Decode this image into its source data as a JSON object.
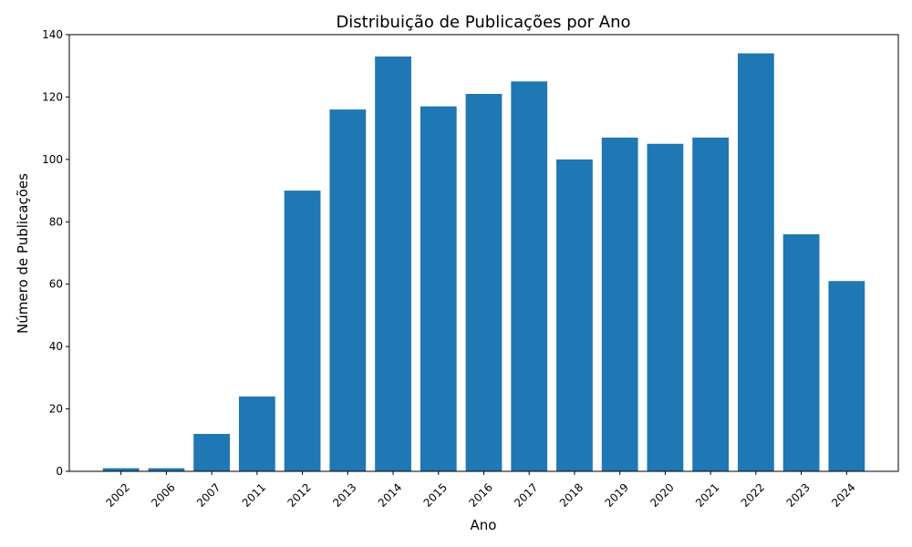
{
  "chart_data": {
    "type": "bar",
    "title": "Distribuição de Publicações por Ano",
    "xlabel": "Ano",
    "ylabel": "Número de Publicações",
    "categories": [
      "2002",
      "2006",
      "2007",
      "2011",
      "2012",
      "2013",
      "2014",
      "2015",
      "2016",
      "2017",
      "2018",
      "2019",
      "2020",
      "2021",
      "2022",
      "2023",
      "2024"
    ],
    "values": [
      1,
      1,
      12,
      24,
      90,
      116,
      133,
      117,
      121,
      125,
      100,
      107,
      105,
      107,
      134,
      76,
      61
    ],
    "ylim": [
      0,
      140
    ],
    "yticks": [
      0,
      20,
      40,
      60,
      80,
      100,
      120,
      140
    ],
    "grid": false,
    "bar_color": "#1f77b4"
  }
}
